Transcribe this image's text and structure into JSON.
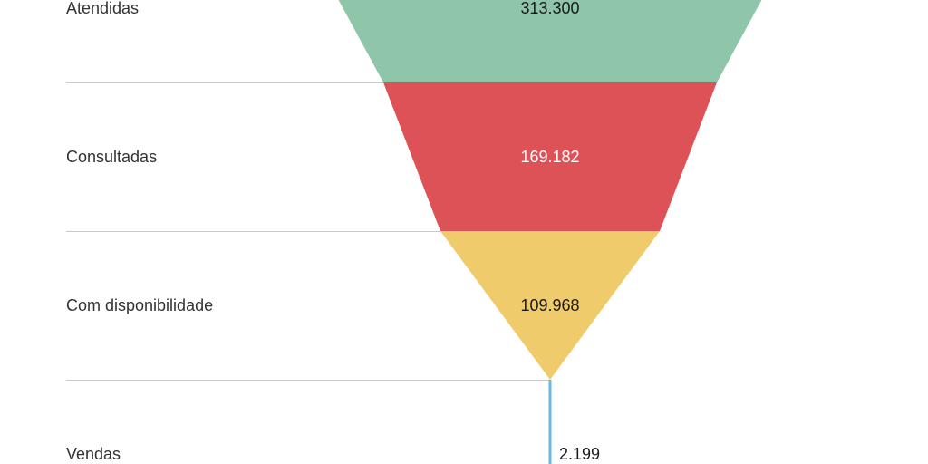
{
  "chart_data": {
    "type": "funnel",
    "title": "",
    "stages": [
      {
        "label": "Atendidas",
        "value": 313300,
        "value_label": "313.300",
        "color": "#8FC5A9",
        "text_color": "#1a1a1a"
      },
      {
        "label": "Consultadas",
        "value": 169182,
        "value_label": "169.182",
        "color": "#DC5257",
        "text_color": "#ffffff"
      },
      {
        "label": "Com disponibilidade",
        "value": 109968,
        "value_label": "109.968",
        "color": "#EFCB6B",
        "text_color": "#1a1a1a"
      },
      {
        "label": "Vendas",
        "value": 2199,
        "value_label": "2.199",
        "color": "#67B9DE",
        "text_color": "#1a1a1a"
      }
    ],
    "divider_color": "#c8c8c8"
  }
}
